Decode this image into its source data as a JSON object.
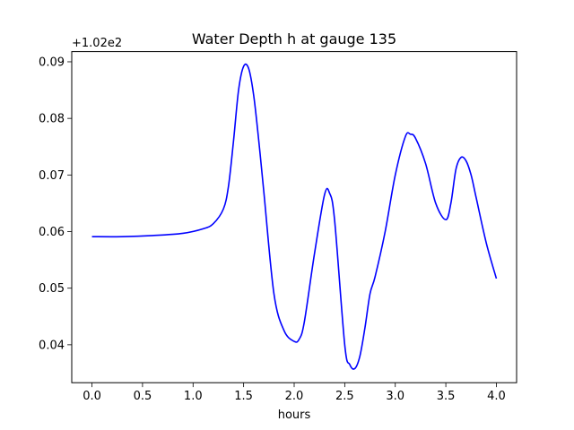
{
  "chart_data": {
    "type": "line",
    "title": "Water Depth h at gauge 135",
    "xlabel": "hours",
    "ylabel": "",
    "y_offset_label": "+1.02e2",
    "y_offset": 102,
    "xlim": [
      -0.2,
      4.2
    ],
    "ylim": [
      0.0333,
      0.0918
    ],
    "xticks": [
      0.0,
      0.5,
      1.0,
      1.5,
      2.0,
      2.5,
      3.0,
      3.5,
      4.0
    ],
    "xtick_labels": [
      "0.0",
      "0.5",
      "1.0",
      "1.5",
      "2.0",
      "2.5",
      "3.0",
      "3.5",
      "4.0"
    ],
    "yticks": [
      0.04,
      0.05,
      0.06,
      0.07,
      0.08,
      0.09
    ],
    "ytick_labels": [
      "0.04",
      "0.05",
      "0.06",
      "0.07",
      "0.08",
      "0.09"
    ],
    "grid": false,
    "legend": "none",
    "series": [
      {
        "color": "#0000ff",
        "x": [
          0.0,
          0.3,
          0.6,
          0.9,
          1.1,
          1.2,
          1.3,
          1.35,
          1.4,
          1.45,
          1.5,
          1.55,
          1.6,
          1.65,
          1.7,
          1.8,
          1.9,
          2.0,
          2.05,
          2.1,
          2.2,
          2.3,
          2.35,
          2.4,
          2.5,
          2.55,
          2.6,
          2.65,
          2.7,
          2.75,
          2.8,
          2.9,
          3.0,
          3.1,
          3.15,
          3.2,
          3.3,
          3.4,
          3.5,
          3.55,
          3.6,
          3.65,
          3.7,
          3.75,
          3.8,
          3.9,
          4.0
        ],
        "y": [
          0.0591,
          0.0591,
          0.0593,
          0.0597,
          0.0605,
          0.0614,
          0.064,
          0.068,
          0.076,
          0.085,
          0.0892,
          0.0888,
          0.084,
          0.076,
          0.067,
          0.049,
          0.0425,
          0.0406,
          0.041,
          0.044,
          0.056,
          0.0665,
          0.0668,
          0.062,
          0.04,
          0.0365,
          0.0358,
          0.038,
          0.043,
          0.049,
          0.052,
          0.06,
          0.07,
          0.0768,
          0.0772,
          0.0765,
          0.072,
          0.065,
          0.0621,
          0.065,
          0.071,
          0.0731,
          0.0725,
          0.07,
          0.066,
          0.058,
          0.0517
        ]
      }
    ]
  }
}
